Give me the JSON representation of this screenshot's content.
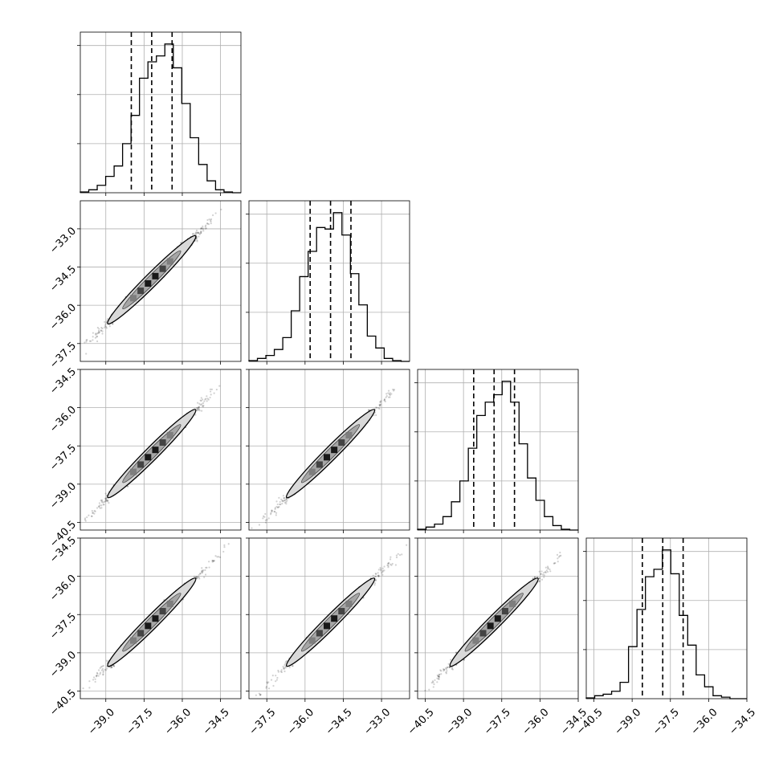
{
  "chart_data": {
    "type": "corner",
    "parameters": [
      {
        "label": "",
        "range": [
          -40.0,
          -33.7
        ],
        "ticks": [
          -39.0,
          -37.5,
          -36.0,
          -34.5
        ],
        "tick_labels": [
          "−39.0",
          "−37.5",
          "−36.0",
          "−34.5"
        ],
        "quantiles": [
          -38.0,
          -37.2,
          -36.4
        ],
        "hist": [
          0.005,
          0.02,
          0.05,
          0.11,
          0.18,
          0.33,
          0.52,
          0.77,
          0.88,
          0.92,
          1.0,
          0.84,
          0.6,
          0.37,
          0.19,
          0.08,
          0.02,
          0.005,
          0.0
        ]
      },
      {
        "label": "",
        "range": [
          -38.2,
          -31.9
        ],
        "ticks": [
          -37.5,
          -36.0,
          -34.5,
          -33.0
        ],
        "tick_labels": [
          "−37.5",
          "−36.0",
          "−34.5",
          "−33.0"
        ],
        "quantiles": [
          -35.8,
          -35.0,
          -34.2
        ],
        "hist": [
          0.005,
          0.02,
          0.04,
          0.08,
          0.16,
          0.34,
          0.57,
          0.74,
          0.9,
          0.89,
          1.0,
          0.85,
          0.59,
          0.38,
          0.17,
          0.09,
          0.02,
          0.005,
          0.0
        ]
      },
      {
        "label": "",
        "range": [
          -40.8,
          -34.5
        ],
        "ticks": [
          -40.5,
          -39.0,
          -37.5,
          -36.0,
          -34.5
        ],
        "tick_labels": [
          "−40.5",
          "−39.0",
          "−37.5",
          "−36.0",
          "−34.5"
        ],
        "quantiles": [
          -38.6,
          -37.8,
          -37.0
        ],
        "hist": [
          0.005,
          0.02,
          0.04,
          0.09,
          0.19,
          0.33,
          0.55,
          0.77,
          0.86,
          0.91,
          1.0,
          0.86,
          0.58,
          0.35,
          0.2,
          0.09,
          0.03,
          0.005,
          0.0
        ]
      },
      {
        "label": "",
        "range": [
          -40.8,
          -34.5
        ],
        "ticks": [
          -40.5,
          -39.0,
          -37.5,
          -36.0,
          -34.5
        ],
        "tick_labels": [
          "−40.5",
          "−39.0",
          "−37.5",
          "−36.0",
          "−34.5"
        ],
        "quantiles": [
          -38.6,
          -37.8,
          -37.0
        ],
        "hist": [
          0.005,
          0.02,
          0.03,
          0.05,
          0.11,
          0.35,
          0.6,
          0.82,
          0.87,
          1.0,
          0.84,
          0.56,
          0.36,
          0.16,
          0.08,
          0.02,
          0.01,
          0.0,
          0.0
        ]
      }
    ],
    "density_contours": [
      0.39,
      0.86
    ],
    "correlation": 0.995,
    "grid": true,
    "colors": {
      "line": "#000000",
      "grid": "#b0b0b0",
      "contour_fill_outer": "#d9d9d9",
      "contour_fill_inner": "#a6a6a6",
      "points": "#000000"
    }
  }
}
